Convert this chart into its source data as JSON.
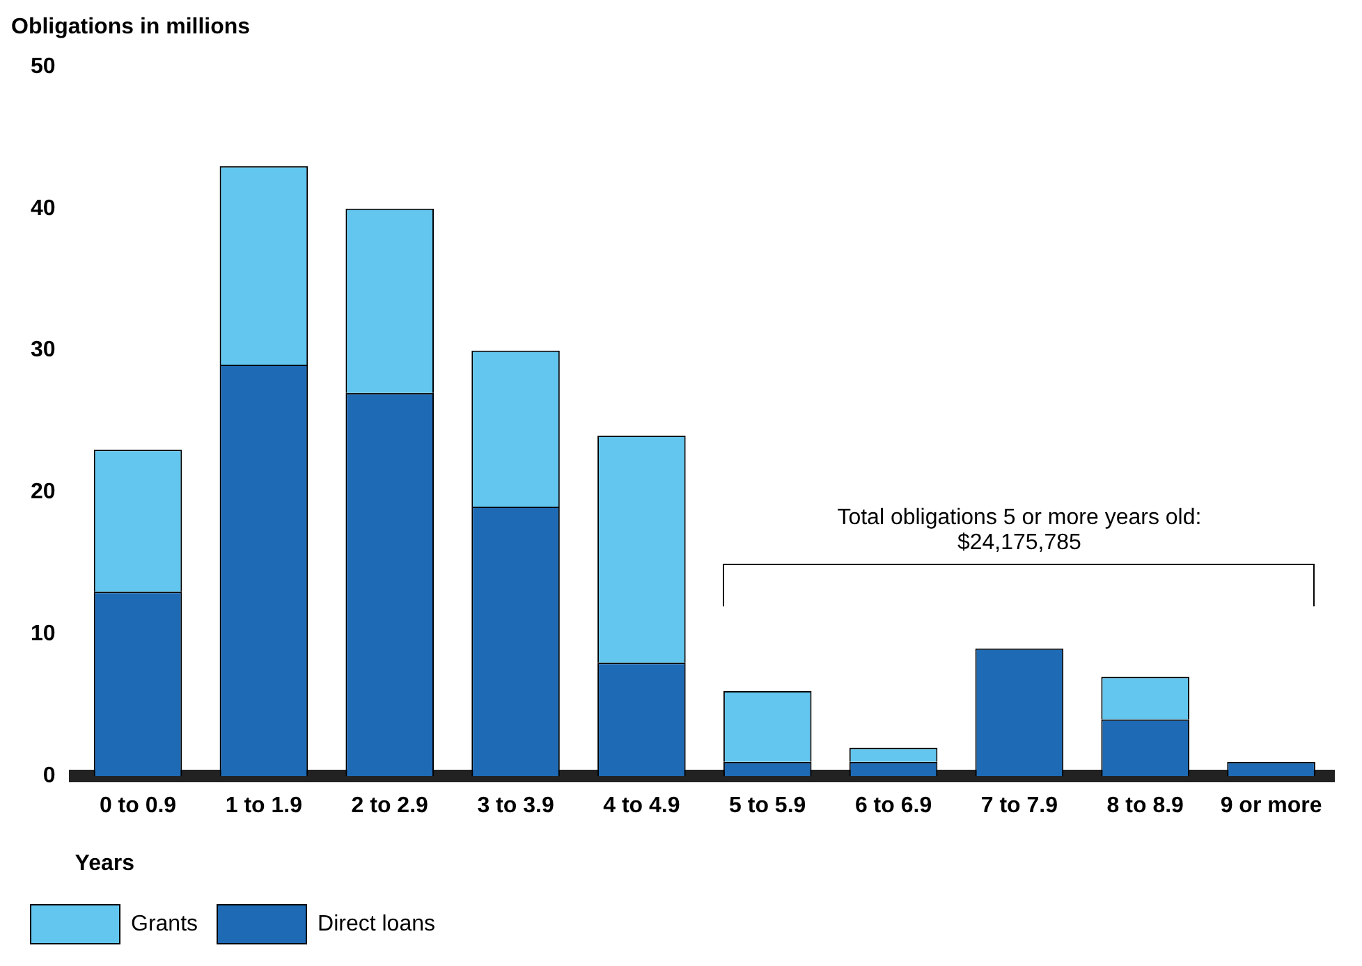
{
  "chart_data": {
    "type": "bar",
    "stacked": true,
    "ylabel": "Obligations in millions",
    "xlabel": "Years",
    "categories": [
      "0 to 0.9",
      "1 to 1.9",
      "2 to 2.9",
      "3 to 3.9",
      "4 to 4.9",
      "5 to 5.9",
      "6 to 6.9",
      "7 to 7.9",
      "8 to 8.9",
      "9 or more"
    ],
    "series": [
      {
        "name": "Direct loans",
        "color": "#1e6ab4",
        "values": [
          13,
          29,
          27,
          19,
          8,
          1,
          1,
          9,
          4,
          1
        ]
      },
      {
        "name": "Grants",
        "color": "#63c6ee",
        "values": [
          10,
          14,
          13,
          11,
          16,
          5,
          1,
          0,
          3,
          0
        ]
      }
    ],
    "ylim": [
      0,
      50
    ],
    "yticks": [
      0,
      10,
      20,
      30,
      40,
      50
    ],
    "grid": false,
    "legend": "bottom left",
    "annotations": [
      "Total obligations 5 or more years old:\n$24,175,785"
    ]
  }
}
